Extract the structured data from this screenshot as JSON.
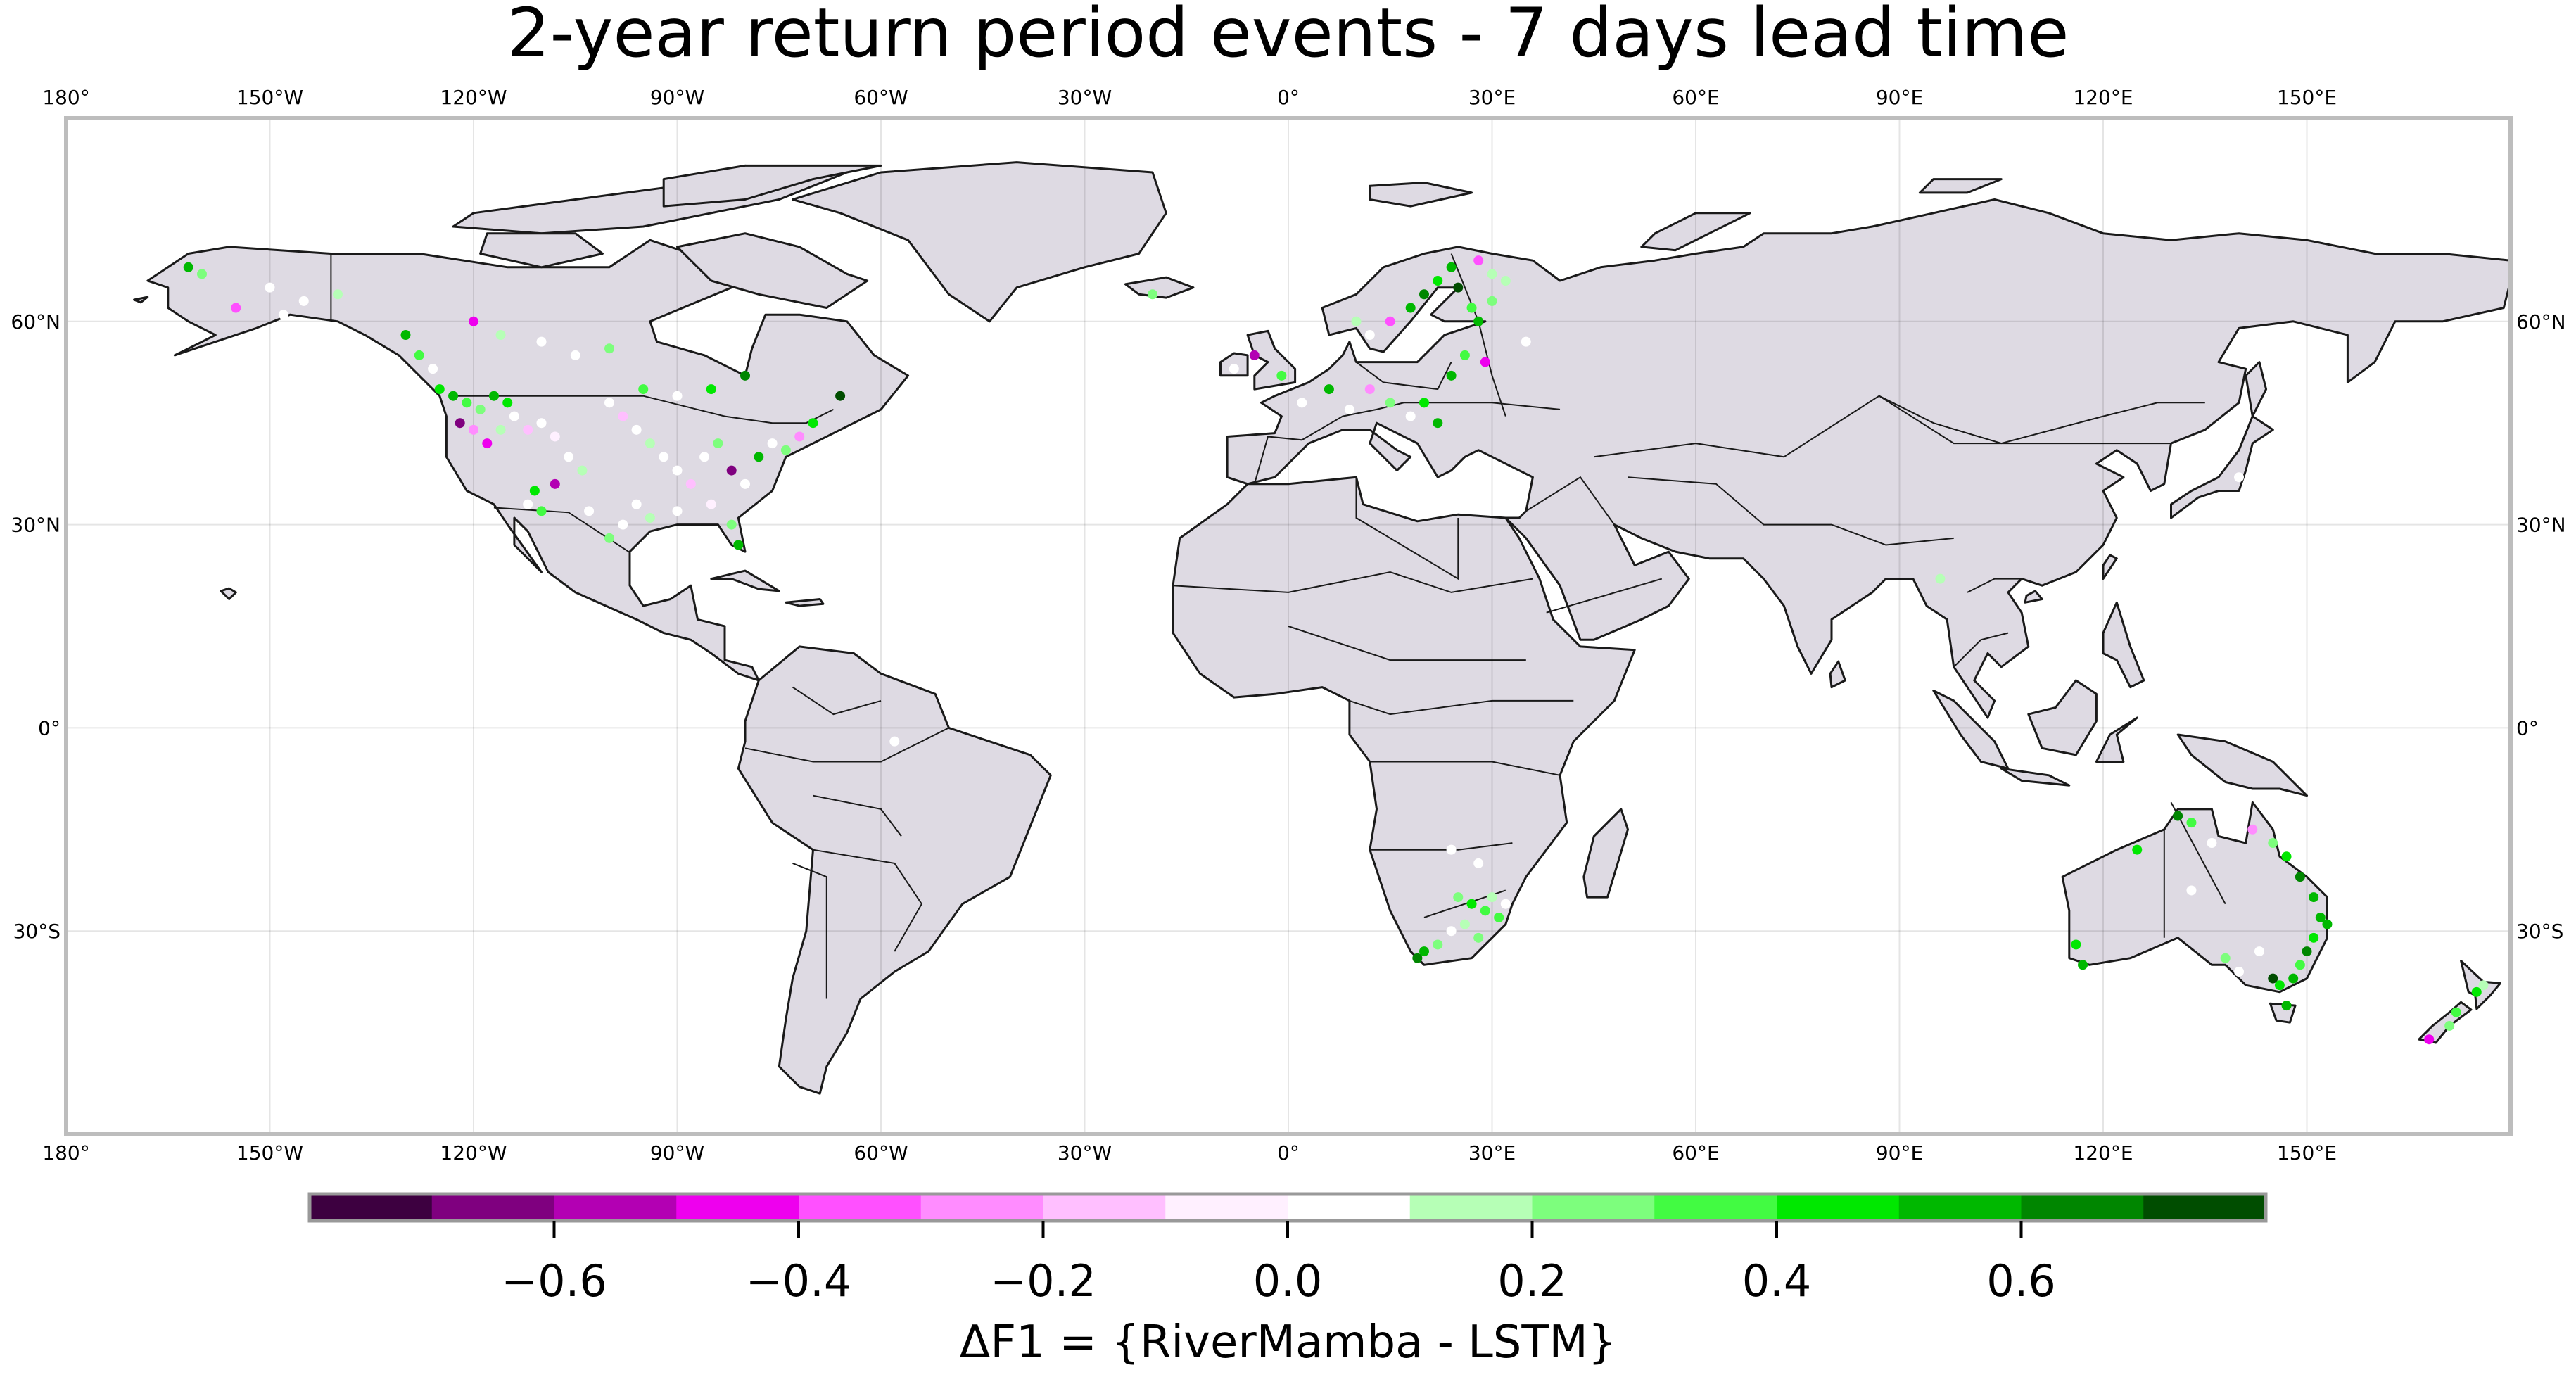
{
  "title": "2-year return period events - 7 days lead time",
  "map": {
    "projection": "PlateCarree",
    "extent": {
      "lon": [
        -180,
        180
      ],
      "lat": [
        -60,
        90
      ]
    },
    "land_color": "#dedae3",
    "ocean_color": "#ffffff",
    "border_color": "#1a1a1a",
    "frame_color": "#bdbdbd",
    "grid": true,
    "lon_ticks": [
      {
        "value": -180,
        "label": "180°"
      },
      {
        "value": -150,
        "label": "150°W"
      },
      {
        "value": -120,
        "label": "120°W"
      },
      {
        "value": -90,
        "label": "90°W"
      },
      {
        "value": -60,
        "label": "60°W"
      },
      {
        "value": -30,
        "label": "30°W"
      },
      {
        "value": 0,
        "label": "0°"
      },
      {
        "value": 30,
        "label": "30°E"
      },
      {
        "value": 60,
        "label": "60°E"
      },
      {
        "value": 90,
        "label": "90°E"
      },
      {
        "value": 120,
        "label": "120°E"
      },
      {
        "value": 150,
        "label": "150°E"
      }
    ],
    "lat_ticks": [
      {
        "value": 60,
        "label": "60°N"
      },
      {
        "value": 30,
        "label": "30°N"
      },
      {
        "value": 0,
        "label": "0°"
      },
      {
        "value": -30,
        "label": "30°S"
      }
    ]
  },
  "colorbar": {
    "label": "ΔF1 = {RiverMamba - LSTM}",
    "bins": [
      -0.8,
      0.8
    ],
    "colors": [
      "#3d0040",
      "#7f007f",
      "#b300b3",
      "#ee00ee",
      "#ff50ff",
      "#ff8cff",
      "#ffbfff",
      "#fff0ff",
      "#ffffff",
      "#b6ffb6",
      "#7dfe7d",
      "#42fb42",
      "#00e800",
      "#00b800",
      "#008600",
      "#004d00"
    ],
    "ticks": [
      {
        "value": -0.6,
        "label": "−0.6"
      },
      {
        "value": -0.4,
        "label": "−0.4"
      },
      {
        "value": -0.2,
        "label": "−0.2"
      },
      {
        "value": 0.0,
        "label": "0.0"
      },
      {
        "value": 0.2,
        "label": "0.2"
      },
      {
        "value": 0.4,
        "label": "0.4"
      },
      {
        "value": 0.6,
        "label": "0.6"
      }
    ]
  },
  "stations": [
    {
      "lon": -162,
      "lat": 68,
      "v": 0.55
    },
    {
      "lon": -160,
      "lat": 67,
      "v": 0.2
    },
    {
      "lon": -155,
      "lat": 62,
      "v": -0.4
    },
    {
      "lon": -150,
      "lat": 65,
      "v": 0.05
    },
    {
      "lon": -148,
      "lat": 61,
      "v": 0.0
    },
    {
      "lon": -145,
      "lat": 63,
      "v": 0.0
    },
    {
      "lon": -140,
      "lat": 64,
      "v": 0.1
    },
    {
      "lon": -130,
      "lat": 58,
      "v": 0.6
    },
    {
      "lon": -128,
      "lat": 55,
      "v": 0.35
    },
    {
      "lon": -125,
      "lat": 50,
      "v": 0.45
    },
    {
      "lon": -123,
      "lat": 49,
      "v": 0.55
    },
    {
      "lon": -121,
      "lat": 48,
      "v": 0.3
    },
    {
      "lon": -119,
      "lat": 47,
      "v": 0.25
    },
    {
      "lon": -117,
      "lat": 49,
      "v": 0.5
    },
    {
      "lon": -115,
      "lat": 48,
      "v": 0.4
    },
    {
      "lon": -122,
      "lat": 45,
      "v": -0.7
    },
    {
      "lon": -120,
      "lat": 44,
      "v": -0.3
    },
    {
      "lon": -118,
      "lat": 42,
      "v": -0.5
    },
    {
      "lon": -116,
      "lat": 44,
      "v": 0.15
    },
    {
      "lon": -114,
      "lat": 46,
      "v": 0.0
    },
    {
      "lon": -112,
      "lat": 44,
      "v": -0.2
    },
    {
      "lon": -110,
      "lat": 45,
      "v": 0.0
    },
    {
      "lon": -108,
      "lat": 43,
      "v": -0.1
    },
    {
      "lon": -106,
      "lat": 40,
      "v": 0.0
    },
    {
      "lon": -104,
      "lat": 38,
      "v": 0.15
    },
    {
      "lon": -108,
      "lat": 36,
      "v": -0.6
    },
    {
      "lon": -111,
      "lat": 35,
      "v": 0.45
    },
    {
      "lon": -112,
      "lat": 33,
      "v": 0.0
    },
    {
      "lon": -110,
      "lat": 32,
      "v": 0.3
    },
    {
      "lon": -100,
      "lat": 48,
      "v": 0.0
    },
    {
      "lon": -98,
      "lat": 46,
      "v": -0.15
    },
    {
      "lon": -96,
      "lat": 44,
      "v": 0.0
    },
    {
      "lon": -94,
      "lat": 42,
      "v": 0.1
    },
    {
      "lon": -92,
      "lat": 40,
      "v": 0.0
    },
    {
      "lon": -90,
      "lat": 38,
      "v": 0.0
    },
    {
      "lon": -88,
      "lat": 36,
      "v": -0.2
    },
    {
      "lon": -86,
      "lat": 40,
      "v": 0.0
    },
    {
      "lon": -84,
      "lat": 42,
      "v": 0.2
    },
    {
      "lon": -82,
      "lat": 38,
      "v": -0.7
    },
    {
      "lon": -80,
      "lat": 36,
      "v": 0.0
    },
    {
      "lon": -78,
      "lat": 40,
      "v": 0.6
    },
    {
      "lon": -76,
      "lat": 42,
      "v": 0.0
    },
    {
      "lon": -74,
      "lat": 41,
      "v": 0.2
    },
    {
      "lon": -72,
      "lat": 43,
      "v": -0.3
    },
    {
      "lon": -70,
      "lat": 45,
      "v": 0.4
    },
    {
      "lon": -96,
      "lat": 33,
      "v": 0.0
    },
    {
      "lon": -98,
      "lat": 30,
      "v": 0.0
    },
    {
      "lon": -94,
      "lat": 31,
      "v": 0.1
    },
    {
      "lon": -90,
      "lat": 32,
      "v": 0.0
    },
    {
      "lon": -85,
      "lat": 33,
      "v": -0.1
    },
    {
      "lon": -82,
      "lat": 30,
      "v": 0.25
    },
    {
      "lon": -81,
      "lat": 27,
      "v": 0.6
    },
    {
      "lon": -100,
      "lat": 28,
      "v": 0.2
    },
    {
      "lon": -103,
      "lat": 32,
      "v": 0.0
    },
    {
      "lon": -95,
      "lat": 50,
      "v": 0.3
    },
    {
      "lon": -90,
      "lat": 49,
      "v": 0.0
    },
    {
      "lon": -85,
      "lat": 50,
      "v": 0.45
    },
    {
      "lon": -80,
      "lat": 52,
      "v": 0.65
    },
    {
      "lon": -66,
      "lat": 49,
      "v": 0.7
    },
    {
      "lon": -105,
      "lat": 55,
      "v": 0.0
    },
    {
      "lon": -110,
      "lat": 57,
      "v": 0.0
    },
    {
      "lon": -100,
      "lat": 56,
      "v": 0.2
    },
    {
      "lon": -120,
      "lat": 60,
      "v": -0.5
    },
    {
      "lon": -116,
      "lat": 58,
      "v": 0.1
    },
    {
      "lon": -126,
      "lat": 53,
      "v": 0.0
    },
    {
      "lon": -1,
      "lat": 52,
      "v": 0.3
    },
    {
      "lon": -8,
      "lat": 53,
      "v": 0.0
    },
    {
      "lon": -5,
      "lat": 55,
      "v": -0.6
    },
    {
      "lon": 2,
      "lat": 48,
      "v": 0.0
    },
    {
      "lon": 6,
      "lat": 50,
      "v": 0.55
    },
    {
      "lon": 9,
      "lat": 47,
      "v": 0.0
    },
    {
      "lon": 12,
      "lat": 50,
      "v": -0.3
    },
    {
      "lon": 15,
      "lat": 48,
      "v": 0.2
    },
    {
      "lon": 18,
      "lat": 46,
      "v": 0.0
    },
    {
      "lon": 20,
      "lat": 48,
      "v": 0.4
    },
    {
      "lon": 22,
      "lat": 45,
      "v": 0.5
    },
    {
      "lon": 24,
      "lat": 52,
      "v": 0.6
    },
    {
      "lon": 26,
      "lat": 55,
      "v": 0.3
    },
    {
      "lon": 15,
      "lat": 60,
      "v": -0.35
    },
    {
      "lon": 18,
      "lat": 62,
      "v": 0.5
    },
    {
      "lon": 20,
      "lat": 64,
      "v": 0.65
    },
    {
      "lon": 22,
      "lat": 66,
      "v": 0.45
    },
    {
      "lon": 25,
      "lat": 65,
      "v": 0.7
    },
    {
      "lon": 27,
      "lat": 62,
      "v": 0.35
    },
    {
      "lon": 28,
      "lat": 60,
      "v": 0.5
    },
    {
      "lon": 30,
      "lat": 63,
      "v": 0.25
    },
    {
      "lon": 24,
      "lat": 68,
      "v": 0.55
    },
    {
      "lon": 28,
      "lat": 69,
      "v": -0.4
    },
    {
      "lon": 30,
      "lat": 67,
      "v": 0.15
    },
    {
      "lon": 10,
      "lat": 60,
      "v": 0.1
    },
    {
      "lon": 12,
      "lat": 58,
      "v": 0.0
    },
    {
      "lon": 35,
      "lat": 57,
      "v": 0.0
    },
    {
      "lon": 29,
      "lat": 54,
      "v": -0.5
    },
    {
      "lon": 32,
      "lat": 66,
      "v": 0.15
    },
    {
      "lon": -20,
      "lat": 64,
      "v": 0.2
    },
    {
      "lon": 25,
      "lat": -25,
      "v": 0.2
    },
    {
      "lon": 27,
      "lat": -26,
      "v": 0.45
    },
    {
      "lon": 29,
      "lat": -27,
      "v": 0.3
    },
    {
      "lon": 30,
      "lat": -25,
      "v": 0.15
    },
    {
      "lon": 31,
      "lat": -28,
      "v": 0.35
    },
    {
      "lon": 26,
      "lat": -29,
      "v": 0.1
    },
    {
      "lon": 24,
      "lat": -30,
      "v": 0.0
    },
    {
      "lon": 22,
      "lat": -32,
      "v": 0.2
    },
    {
      "lon": 19,
      "lat": -34,
      "v": 0.65
    },
    {
      "lon": 20,
      "lat": -33,
      "v": 0.5
    },
    {
      "lon": 28,
      "lat": -31,
      "v": 0.2
    },
    {
      "lon": 32,
      "lat": -26,
      "v": 0.0
    },
    {
      "lon": 24,
      "lat": -18,
      "v": 0.0
    },
    {
      "lon": 28,
      "lat": -20,
      "v": 0.0
    },
    {
      "lon": 116,
      "lat": -32,
      "v": 0.45
    },
    {
      "lon": 117,
      "lat": -35,
      "v": 0.5
    },
    {
      "lon": 125,
      "lat": -18,
      "v": 0.4
    },
    {
      "lon": 131,
      "lat": -13,
      "v": 0.65
    },
    {
      "lon": 133,
      "lat": -14,
      "v": 0.3
    },
    {
      "lon": 136,
      "lat": -17,
      "v": 0.0
    },
    {
      "lon": 142,
      "lat": -15,
      "v": -0.3
    },
    {
      "lon": 145,
      "lat": -17,
      "v": 0.2
    },
    {
      "lon": 147,
      "lat": -19,
      "v": 0.45
    },
    {
      "lon": 149,
      "lat": -22,
      "v": 0.65
    },
    {
      "lon": 151,
      "lat": -25,
      "v": 0.5
    },
    {
      "lon": 152,
      "lat": -28,
      "v": 0.55
    },
    {
      "lon": 153,
      "lat": -29,
      "v": 0.6
    },
    {
      "lon": 151,
      "lat": -31,
      "v": 0.4
    },
    {
      "lon": 150,
      "lat": -33,
      "v": 0.65
    },
    {
      "lon": 149,
      "lat": -35,
      "v": 0.3
    },
    {
      "lon": 148,
      "lat": -37,
      "v": 0.5
    },
    {
      "lon": 145,
      "lat": -37,
      "v": 0.7
    },
    {
      "lon": 146,
      "lat": -38,
      "v": 0.4
    },
    {
      "lon": 147,
      "lat": -41,
      "v": 0.55
    },
    {
      "lon": 143,
      "lat": -33,
      "v": 0.0
    },
    {
      "lon": 140,
      "lat": -36,
      "v": 0.0
    },
    {
      "lon": 138,
      "lat": -34,
      "v": 0.2
    },
    {
      "lon": 133,
      "lat": -24,
      "v": 0.0
    },
    {
      "lon": 172,
      "lat": -42,
      "v": 0.35
    },
    {
      "lon": 171,
      "lat": -44,
      "v": 0.2
    },
    {
      "lon": 168,
      "lat": -46,
      "v": -0.45
    },
    {
      "lon": 175,
      "lat": -39,
      "v": 0.4
    },
    {
      "lon": 176,
      "lat": -38,
      "v": 0.15
    },
    {
      "lon": 96,
      "lat": 22,
      "v": 0.1
    },
    {
      "lon": -58,
      "lat": -2,
      "v": 0.0
    },
    {
      "lon": 140,
      "lat": 37,
      "v": 0.0
    }
  ]
}
